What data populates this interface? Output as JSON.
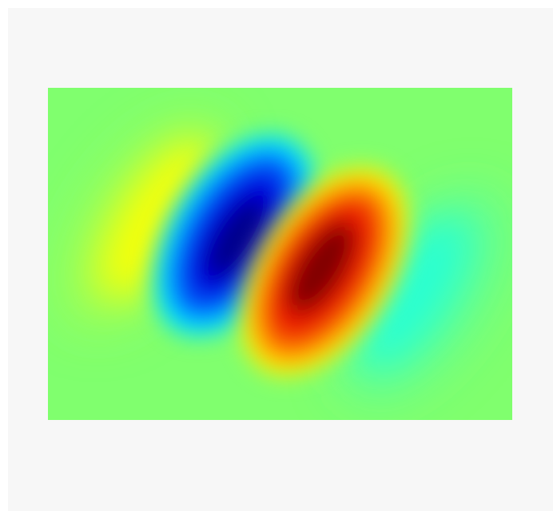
{
  "image": {
    "subject": "gabor-filter",
    "colormap": "jet",
    "colors": {
      "frame_background": "#f7f7f7",
      "field_neutral": "#80ff6e",
      "negative_peak": "#00008a",
      "positive_peak": "#800000"
    }
  },
  "chart_data": {
    "type": "heatmap",
    "title": "",
    "xlabel": "",
    "ylabel": "",
    "colormap": "jet",
    "value_range": [
      -1,
      1
    ],
    "grid": false,
    "legend": "none"
  }
}
